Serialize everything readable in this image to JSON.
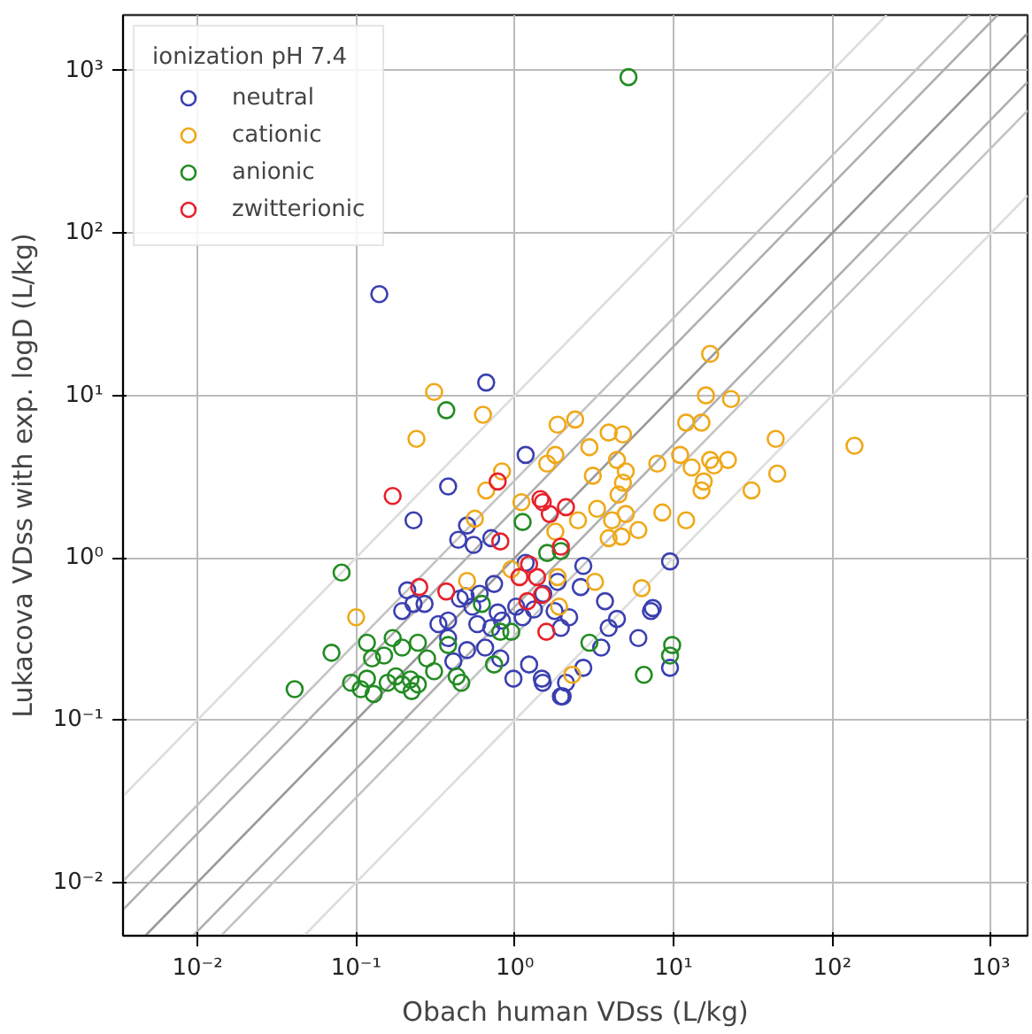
{
  "chart_data": {
    "type": "scatter",
    "xlabel": "Obach human VDss (L/kg)",
    "ylabel": "Lukacova VDss with exp. logD (L/kg)",
    "legend_title": "ionization pH 7.4",
    "log": "xy",
    "grid": true,
    "legend": "top left",
    "marker": "circle",
    "xlim": [
      0.0034,
      1700
    ],
    "ylim": [
      0.0047,
      2200
    ],
    "xticks": [
      {
        "value": 0.01,
        "label": "10⁻²"
      },
      {
        "value": 0.1,
        "label": "10⁻¹"
      },
      {
        "value": 1,
        "label": "10⁰"
      },
      {
        "value": 10,
        "label": "10¹"
      },
      {
        "value": 100,
        "label": "10²"
      },
      {
        "value": 1000,
        "label": "10³"
      }
    ],
    "yticks": [
      {
        "value": 0.01,
        "label": "10⁻²"
      },
      {
        "value": 0.1,
        "label": "10⁻¹"
      },
      {
        "value": 1,
        "label": "10⁰"
      },
      {
        "value": 10,
        "label": "10¹"
      },
      {
        "value": 100,
        "label": "10²"
      },
      {
        "value": 1000,
        "label": "10³"
      }
    ],
    "series": [
      {
        "type": "line",
        "marker": "none",
        "color": "#dddddd",
        "x": [
          0.0034,
          220
        ],
        "values": [
          0.034,
          2200
        ]
      },
      {
        "type": "line",
        "marker": "none",
        "color": "#dddddd",
        "x": [
          0.047,
          1700
        ],
        "values": [
          0.0047,
          170
        ]
      },
      {
        "type": "line",
        "marker": "none",
        "color": "#c4c4c4",
        "x": [
          0.0034,
          733
        ],
        "values": [
          0.0102,
          2200
        ]
      },
      {
        "type": "line",
        "marker": "none",
        "color": "#c4c4c4",
        "x": [
          0.0141,
          1700
        ],
        "values": [
          0.0047,
          567
        ]
      },
      {
        "type": "line",
        "marker": "none",
        "color": "#b0b0b0",
        "x": [
          0.0034,
          1100
        ],
        "values": [
          0.0068,
          2200
        ]
      },
      {
        "type": "line",
        "marker": "none",
        "color": "#b0b0b0",
        "x": [
          0.0094,
          1700
        ],
        "values": [
          0.0047,
          850
        ]
      },
      {
        "type": "line",
        "marker": "none",
        "color": "#999999",
        "x": [
          0.0047,
          1700
        ],
        "values": [
          0.0047,
          1700
        ]
      },
      {
        "name": "neutral",
        "color": "#3a3fb0",
        "x": [
          0.38,
          0.23,
          0.5,
          0.44,
          0.55,
          0.71,
          0.21,
          0.195,
          0.23,
          0.27,
          0.33,
          0.38,
          0.45,
          0.49,
          0.54,
          0.58,
          0.6,
          0.74,
          0.78,
          0.83,
          0.71,
          0.65,
          0.81,
          0.98,
          1.23,
          1.48,
          1.95,
          1.02,
          1.12,
          1.32,
          1.51,
          1.78,
          1.86,
          1.17,
          0.41,
          0.5,
          0.38,
          9.5,
          2.7,
          2.6,
          3.7,
          4.4,
          3.9,
          3.5,
          6.0,
          7.2,
          7.4,
          2.7,
          2.1,
          2.0,
          1.5,
          9.5,
          2.2,
          1.95,
          0.14,
          0.66,
          1.17
        ],
        "values": [
          2.75,
          1.7,
          1.58,
          1.29,
          1.2,
          1.32,
          0.63,
          0.47,
          0.52,
          0.52,
          0.39,
          0.41,
          0.56,
          0.58,
          0.5,
          0.39,
          0.6,
          0.69,
          0.46,
          0.41,
          0.37,
          0.28,
          0.24,
          0.18,
          0.22,
          0.18,
          0.14,
          0.5,
          0.43,
          0.48,
          0.6,
          0.47,
          0.71,
          0.93,
          0.23,
          0.27,
          0.32,
          0.95,
          0.89,
          0.66,
          0.54,
          0.42,
          0.37,
          0.28,
          0.32,
          0.47,
          0.49,
          0.21,
          0.17,
          0.14,
          0.17,
          0.21,
          0.43,
          0.37,
          42,
          12,
          4.3
        ]
      },
      {
        "name": "cationic",
        "color": "#f0a818",
        "x": [
          0.1,
          0.5,
          0.56,
          0.66,
          0.83,
          1.1,
          0.95,
          1.86,
          6.3,
          3.2,
          2.3,
          45,
          31,
          12,
          8.5,
          15,
          15.5,
          6.0,
          4.7,
          3.9,
          5.0,
          4.1,
          3.3,
          4.5,
          4.8,
          5.0,
          3.1,
          2.5,
          1.8,
          13,
          18,
          1.9,
          17,
          16,
          23,
          12,
          15,
          44,
          138,
          1.86,
          2.4,
          3.9,
          4.8,
          2.95,
          1.8,
          4.4,
          7.9,
          11,
          17,
          22,
          1.6,
          0.31,
          0.63,
          0.24
        ],
        "values": [
          0.43,
          0.72,
          1.74,
          2.6,
          3.4,
          2.2,
          0.85,
          0.76,
          0.65,
          0.71,
          0.19,
          3.3,
          2.6,
          1.7,
          1.9,
          2.6,
          2.95,
          1.48,
          1.35,
          1.32,
          1.86,
          1.7,
          2.0,
          2.45,
          2.9,
          3.4,
          3.2,
          1.7,
          1.45,
          3.6,
          3.7,
          0.5,
          18,
          10,
          9.5,
          6.8,
          6.8,
          5.4,
          4.9,
          6.6,
          7.1,
          5.9,
          5.75,
          4.8,
          4.3,
          4.0,
          3.8,
          4.3,
          4.0,
          4.0,
          3.8,
          10.5,
          7.6,
          5.4
        ]
      },
      {
        "name": "anionic",
        "color": "#228b22",
        "x": [
          0.081,
          0.07,
          0.041,
          0.117,
          0.126,
          0.15,
          0.17,
          0.195,
          0.245,
          0.28,
          0.38,
          0.093,
          0.107,
          0.117,
          0.129,
          0.158,
          0.178,
          0.195,
          0.22,
          0.224,
          0.245,
          0.31,
          0.43,
          0.46,
          0.74,
          0.81,
          0.95,
          0.62,
          1.12,
          2.95,
          6.5,
          9.8,
          9.5,
          1.6,
          1.95,
          5.2,
          0.37
        ],
        "values": [
          0.81,
          0.26,
          0.155,
          0.3,
          0.24,
          0.25,
          0.32,
          0.28,
          0.3,
          0.24,
          0.29,
          0.17,
          0.155,
          0.18,
          0.145,
          0.17,
          0.186,
          0.166,
          0.178,
          0.151,
          0.166,
          0.2,
          0.186,
          0.17,
          0.22,
          0.35,
          0.35,
          0.52,
          1.66,
          0.3,
          0.19,
          0.29,
          0.25,
          1.07,
          1.1,
          912,
          8.1
        ]
      },
      {
        "name": "zwitterionic",
        "color": "#e8202a",
        "x": [
          0.17,
          0.25,
          0.37,
          0.78,
          0.81,
          1.45,
          1.66,
          1.23,
          1.07,
          1.38,
          1.58,
          1.2,
          1.95,
          1.5,
          2.1,
          1.48
        ],
        "values": [
          2.4,
          0.66,
          0.62,
          2.95,
          1.26,
          2.3,
          1.86,
          0.91,
          0.76,
          0.76,
          0.35,
          0.54,
          1.17,
          2.2,
          2.05,
          0.59
        ]
      }
    ]
  }
}
